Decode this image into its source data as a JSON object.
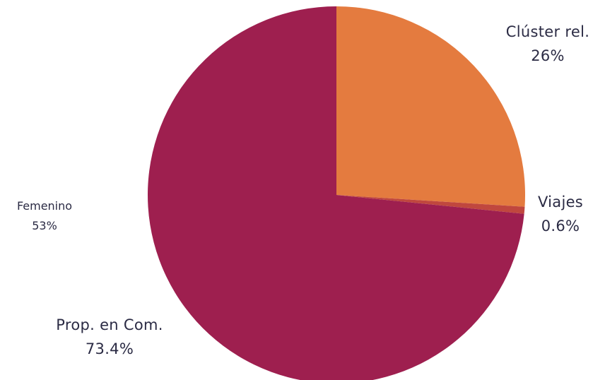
{
  "chart_data": {
    "type": "pie",
    "slices": [
      {
        "label": "Clúster rel.",
        "value": 26,
        "display": "26%",
        "color": "#E47B3F"
      },
      {
        "label": "Viajes",
        "value": 0.6,
        "display": "0.6%",
        "color": "#C0473E"
      },
      {
        "label": "Prop. en Com.",
        "value": 73.4,
        "display": "73.4%",
        "color": "#9E1F4F"
      }
    ],
    "annotations": [
      {
        "label": "Femenino",
        "display": "53%"
      }
    ],
    "start_angle_deg": 0,
    "direction": "clockwise"
  }
}
